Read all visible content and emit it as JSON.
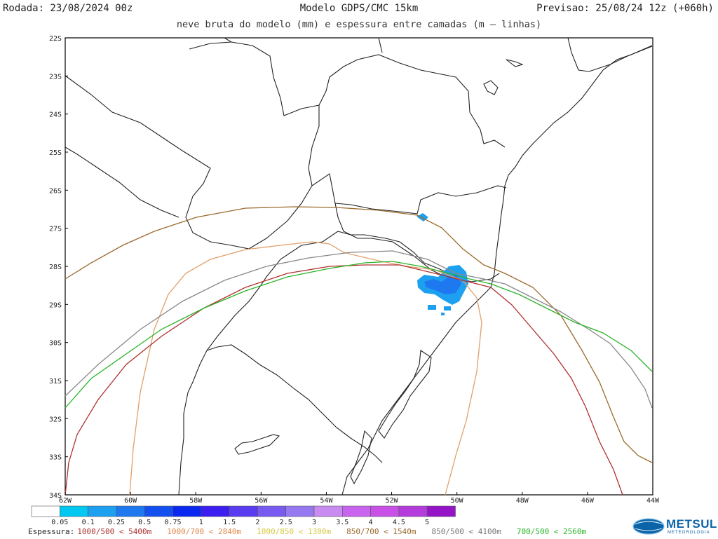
{
  "header": {
    "run": "Rodada: 23/08/2024 00z",
    "model": "Modelo GDPS/CMC 15km",
    "forecast": "Previsao: 25/08/24 12z (+060h)",
    "subtitle": "neve bruta do modelo (mm) e espessura entre camadas (m – linhas)"
  },
  "map": {
    "lat_labels": [
      "22S",
      "23S",
      "24S",
      "25S",
      "26S",
      "27S",
      "28S",
      "29S",
      "30S",
      "31S",
      "32S",
      "33S",
      "34S"
    ],
    "lon_labels": [
      "62W",
      "60W",
      "58W",
      "56W",
      "54W",
      "52W",
      "50W",
      "48W",
      "46W",
      "44W"
    ]
  },
  "colorbar": {
    "labels": [
      "0.05",
      "0.1",
      "0.25",
      "0.5",
      "0.75",
      "1",
      "1.5",
      "2",
      "2.5",
      "3",
      "3.5",
      "4",
      "4.5",
      "5"
    ],
    "colors": [
      "#ffffff",
      "#00c8f0",
      "#1ea0f0",
      "#1e78f0",
      "#1450f0",
      "#0a28f0",
      "#3c1ef0",
      "#5a3cf0",
      "#785af0",
      "#9678f0",
      "#c88cf0",
      "#c864f0",
      "#c850e6",
      "#b43cdc",
      "#9614c8"
    ]
  },
  "thickness": {
    "label": "Espessura:",
    "items": [
      {
        "text": "1000/500 < 5400m",
        "color": "#b03030"
      },
      {
        "text": "1000/700 < 2840m",
        "color": "#e0884a"
      },
      {
        "text": "1000/850 < 1300m",
        "color": "#d6c840"
      },
      {
        "text": "850/700 < 1540m",
        "color": "#9a6a2c"
      },
      {
        "text": "850/500 < 4100m",
        "color": "#777777"
      },
      {
        "text": "700/500 < 2560m",
        "color": "#28b428"
      }
    ]
  },
  "logo": {
    "name": "METSUL",
    "tagline": "METEOROLOGIA"
  }
}
